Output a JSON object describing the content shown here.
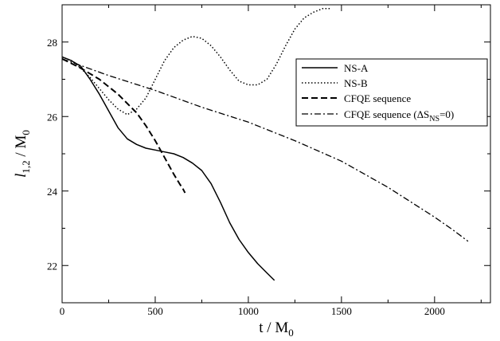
{
  "chart_data": {
    "type": "line",
    "title": "",
    "xlabel": "t / M",
    "xlabel_sub": "0",
    "ylabel": "l",
    "ylabel_sub": "1,2",
    "ylabel_tail": " / M",
    "ylabel_tail_sub": "0",
    "xlim": [
      0,
      2300
    ],
    "ylim": [
      21,
      29
    ],
    "xticks": [
      0,
      500,
      1000,
      1500,
      2000
    ],
    "xtick_labels": [
      "0",
      "500",
      "1000",
      "1500",
      "2000"
    ],
    "yticks": [
      22,
      24,
      26,
      28
    ],
    "ytick_labels": [
      "22",
      "24",
      "26",
      "28"
    ],
    "grid": false,
    "legend_position": "top-right",
    "series": [
      {
        "name": "NS-A",
        "style": "solid",
        "color": "#000000",
        "x": [
          0,
          50,
          100,
          150,
          200,
          250,
          300,
          350,
          400,
          450,
          500,
          550,
          600,
          650,
          700,
          750,
          800,
          850,
          900,
          950,
          1000,
          1050,
          1100,
          1140
        ],
        "y": [
          27.6,
          27.5,
          27.35,
          27.0,
          26.6,
          26.15,
          25.7,
          25.4,
          25.25,
          25.15,
          25.1,
          25.05,
          25.0,
          24.9,
          24.75,
          24.55,
          24.2,
          23.7,
          23.15,
          22.7,
          22.35,
          22.05,
          21.8,
          21.6
        ]
      },
      {
        "name": "NS-B",
        "style": "dotted",
        "color": "#000000",
        "x": [
          0,
          50,
          100,
          150,
          200,
          250,
          300,
          350,
          400,
          450,
          500,
          550,
          600,
          650,
          700,
          750,
          800,
          850,
          900,
          950,
          1000,
          1050,
          1100,
          1150,
          1200,
          1250,
          1300,
          1350,
          1400,
          1440
        ],
        "y": [
          27.6,
          27.5,
          27.3,
          27.05,
          26.75,
          26.45,
          26.2,
          26.05,
          26.2,
          26.5,
          27.0,
          27.5,
          27.85,
          28.05,
          28.15,
          28.1,
          27.9,
          27.6,
          27.25,
          26.95,
          26.85,
          26.85,
          27.0,
          27.4,
          27.9,
          28.35,
          28.65,
          28.8,
          28.9,
          28.9
        ]
      },
      {
        "name": "CFQE sequence",
        "style": "dashed",
        "color": "#000000",
        "x": [
          0,
          100,
          200,
          300,
          400,
          450,
          500,
          550,
          600,
          630,
          650,
          660
        ],
        "y": [
          27.55,
          27.3,
          27.0,
          26.6,
          26.1,
          25.75,
          25.35,
          24.9,
          24.45,
          24.2,
          24.05,
          23.95
        ]
      },
      {
        "name": "CFQE sequence (ΔS",
        "name_sub": "NS",
        "name_tail": "=0)",
        "style": "dashdot",
        "color": "#000000",
        "x": [
          0,
          250,
          500,
          750,
          1000,
          1250,
          1500,
          1750,
          2000,
          2100,
          2180
        ],
        "y": [
          27.55,
          27.1,
          26.7,
          26.25,
          25.85,
          25.35,
          24.8,
          24.1,
          23.3,
          22.95,
          22.65
        ]
      }
    ]
  }
}
